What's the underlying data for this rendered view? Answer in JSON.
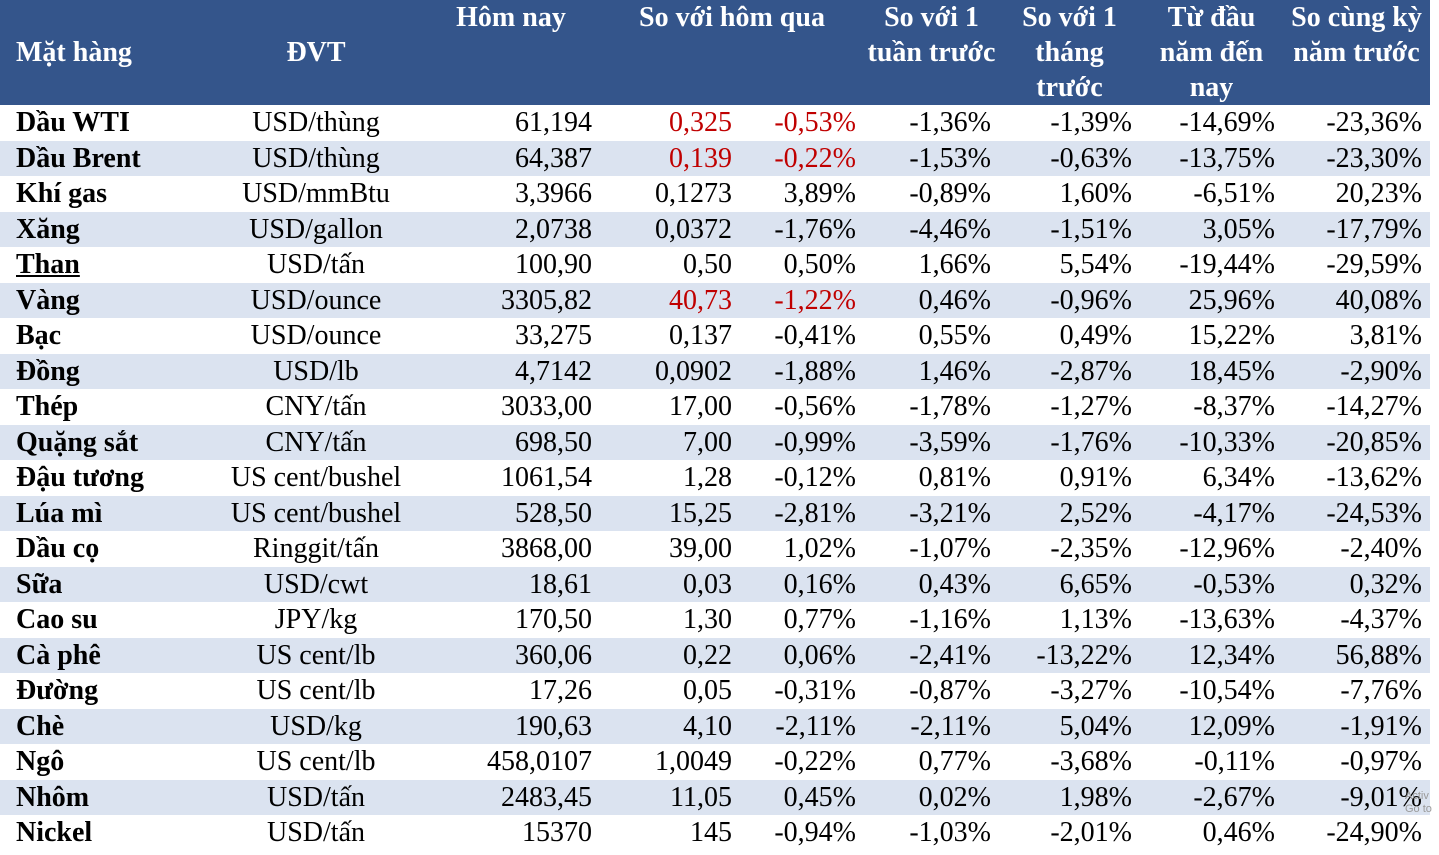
{
  "columns": {
    "name": "Mặt hàng",
    "unit": "ĐVT",
    "today": "Hôm nay",
    "vs_yesterday": "So với hôm qua",
    "vs_week": "So với 1 tuần trước",
    "vs_month": "So với 1 tháng trước",
    "ytd": "Từ đầu năm đến nay",
    "yoy": "So cùng kỳ năm trước"
  },
  "highlight_color": "#c00000",
  "header_color": "#34558b",
  "stripe_color": "#dbe3f0",
  "rows": [
    {
      "name": "Dầu WTI",
      "unit": "USD/thùng",
      "today": "61,194",
      "chg": "0,325",
      "chg_pct": "-0,53%",
      "week": "-1,36%",
      "month": "-1,39%",
      "ytd": "-14,69%",
      "yoy": "-23,36%",
      "red": true
    },
    {
      "name": "Dầu Brent",
      "unit": "USD/thùng",
      "today": "64,387",
      "chg": "0,139",
      "chg_pct": "-0,22%",
      "week": "-1,53%",
      "month": "-0,63%",
      "ytd": "-13,75%",
      "yoy": "-23,30%",
      "red": true
    },
    {
      "name": "Khí gas",
      "unit": "USD/mmBtu",
      "today": "3,3966",
      "chg": "0,1273",
      "chg_pct": "3,89%",
      "week": "-0,89%",
      "month": "1,60%",
      "ytd": "-6,51%",
      "yoy": "20,23%",
      "red": false
    },
    {
      "name": "Xăng",
      "unit": "USD/gallon",
      "today": "2,0738",
      "chg": "0,0372",
      "chg_pct": "-1,76%",
      "week": "-4,46%",
      "month": "-1,51%",
      "ytd": "3,05%",
      "yoy": "-17,79%",
      "red": false
    },
    {
      "name": "Than",
      "unit": "USD/tấn",
      "today": "100,90",
      "chg": "0,50",
      "chg_pct": "0,50%",
      "week": "1,66%",
      "month": "5,54%",
      "ytd": "-19,44%",
      "yoy": "-29,59%",
      "red": false,
      "underline": true
    },
    {
      "name": "Vàng",
      "unit": "USD/ounce",
      "today": "3305,82",
      "chg": "40,73",
      "chg_pct": "-1,22%",
      "week": "0,46%",
      "month": "-0,96%",
      "ytd": "25,96%",
      "yoy": "40,08%",
      "red": true
    },
    {
      "name": "Bạc",
      "unit": "USD/ounce",
      "today": "33,275",
      "chg": "0,137",
      "chg_pct": "-0,41%",
      "week": "0,55%",
      "month": "0,49%",
      "ytd": "15,22%",
      "yoy": "3,81%",
      "red": false
    },
    {
      "name": "Đồng",
      "unit": "USD/lb",
      "today": "4,7142",
      "chg": "0,0902",
      "chg_pct": "-1,88%",
      "week": "1,46%",
      "month": "-2,87%",
      "ytd": "18,45%",
      "yoy": "-2,90%",
      "red": false
    },
    {
      "name": "Thép",
      "unit": "CNY/tấn",
      "today": "3033,00",
      "chg": "17,00",
      "chg_pct": "-0,56%",
      "week": "-1,78%",
      "month": "-1,27%",
      "ytd": "-8,37%",
      "yoy": "-14,27%",
      "red": false
    },
    {
      "name": "Quặng sắt",
      "unit": "CNY/tấn",
      "today": "698,50",
      "chg": "7,00",
      "chg_pct": "-0,99%",
      "week": "-3,59%",
      "month": "-1,76%",
      "ytd": "-10,33%",
      "yoy": "-20,85%",
      "red": false
    },
    {
      "name": "Đậu tương",
      "unit": "US cent/bushel",
      "today": "1061,54",
      "chg": "1,28",
      "chg_pct": "-0,12%",
      "week": "0,81%",
      "month": "0,91%",
      "ytd": "6,34%",
      "yoy": "-13,62%",
      "red": false
    },
    {
      "name": "Lúa mì",
      "unit": "US cent/bushel",
      "today": "528,50",
      "chg": "15,25",
      "chg_pct": "-2,81%",
      "week": "-3,21%",
      "month": "2,52%",
      "ytd": "-4,17%",
      "yoy": "-24,53%",
      "red": false
    },
    {
      "name": "Dầu cọ",
      "unit": "Ringgit/tấn",
      "today": "3868,00",
      "chg": "39,00",
      "chg_pct": "1,02%",
      "week": "-1,07%",
      "month": "-2,35%",
      "ytd": "-12,96%",
      "yoy": "-2,40%",
      "red": false
    },
    {
      "name": "Sữa",
      "unit": "USD/cwt",
      "today": "18,61",
      "chg": "0,03",
      "chg_pct": "0,16%",
      "week": "0,43%",
      "month": "6,65%",
      "ytd": "-0,53%",
      "yoy": "0,32%",
      "red": false
    },
    {
      "name": "Cao su",
      "unit": "JPY/kg",
      "today": "170,50",
      "chg": "1,30",
      "chg_pct": "0,77%",
      "week": "-1,16%",
      "month": "1,13%",
      "ytd": "-13,63%",
      "yoy": "-4,37%",
      "red": false
    },
    {
      "name": "Cà phê",
      "unit": "US cent/lb",
      "today": "360,06",
      "chg": "0,22",
      "chg_pct": "0,06%",
      "week": "-2,41%",
      "month": "-13,22%",
      "ytd": "12,34%",
      "yoy": "56,88%",
      "red": false
    },
    {
      "name": "Đường",
      "unit": "US cent/lb",
      "today": "17,26",
      "chg": "0,05",
      "chg_pct": "-0,31%",
      "week": "-0,87%",
      "month": "-3,27%",
      "ytd": "-10,54%",
      "yoy": "-7,76%",
      "red": false
    },
    {
      "name": "Chè",
      "unit": "USD/kg",
      "today": "190,63",
      "chg": "4,10",
      "chg_pct": "-2,11%",
      "week": "-2,11%",
      "month": "5,04%",
      "ytd": "12,09%",
      "yoy": "-1,91%",
      "red": false
    },
    {
      "name": "Ngô",
      "unit": "US cent/lb",
      "today": "458,0107",
      "chg": "1,0049",
      "chg_pct": "-0,22%",
      "week": "0,77%",
      "month": "-3,68%",
      "ytd": "-0,11%",
      "yoy": "-0,97%",
      "red": false
    },
    {
      "name": "Nhôm",
      "unit": "USD/tấn",
      "today": "2483,45",
      "chg": "11,05",
      "chg_pct": "0,45%",
      "week": "0,02%",
      "month": "1,98%",
      "ytd": "-2,67%",
      "yoy": "-9,01%",
      "red": false
    },
    {
      "name": "Nickel",
      "unit": "USD/tấn",
      "today": "15370",
      "chg": "145",
      "chg_pct": "-0,94%",
      "week": "-1,03%",
      "month": "-2,01%",
      "ytd": "0,46%",
      "yoy": "-24,90%",
      "red": false
    }
  ],
  "watermark": {
    "line1": "Activ",
    "line2": "Go to"
  }
}
